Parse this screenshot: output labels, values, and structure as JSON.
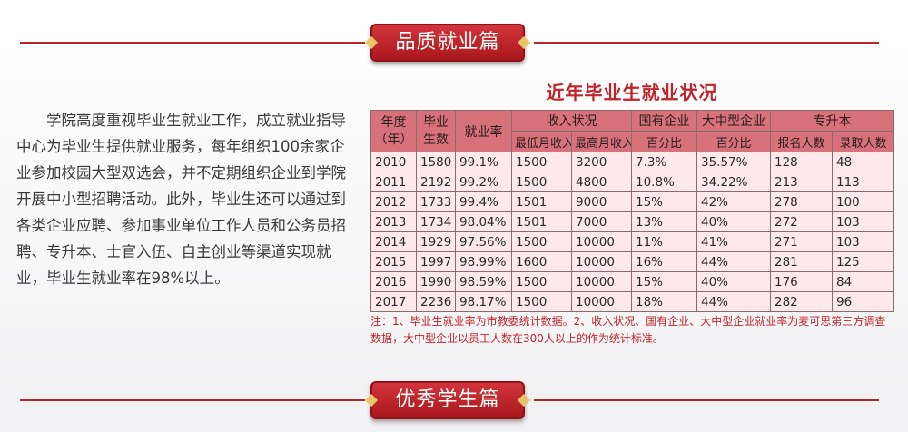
{
  "sections": {
    "top_title": "品质就业篇",
    "bottom_title": "优秀学生篇"
  },
  "intro": {
    "text": "学院高度重视毕业生就业工作，成立就业指导中心为毕业生提供就业服务，每年组织100余家企业参加校园大型双选会，并不定期组织企业到学院开展中小型招聘活动。此外，毕业生还可以通过到各类企业应聘、参加事业单位工作人员和公务员招聘、专升本、士官入伍、自主创业等渠道实现就业，毕业生就业率在98%以上。"
  },
  "table": {
    "title": "近年毕业生就业状况",
    "headers": {
      "year": "年度（年）",
      "graduates": "毕业生数",
      "rate": "就业率",
      "income": "收入状况",
      "income_min": "最低月收入",
      "income_max": "最高月收入",
      "soe": "国有企业",
      "soe_sub": "百分比",
      "large": "大中型企业",
      "large_sub": "百分比",
      "upgrade": "专升本",
      "applicants": "报名人数",
      "admitted": "录取人数"
    },
    "rows": [
      [
        "2010",
        "1580",
        "99.1%",
        "1500",
        "3200",
        "7.3%",
        "35.57%",
        "128",
        "48"
      ],
      [
        "2011",
        "2192",
        "99.2%",
        "1500",
        "4800",
        "10.8%",
        "34.22%",
        "213",
        "113"
      ],
      [
        "2012",
        "1733",
        "99.4%",
        "1501",
        "9000",
        "15%",
        "42%",
        "278",
        "100"
      ],
      [
        "2013",
        "1734",
        "98.04%",
        "1501",
        "7000",
        "13%",
        "40%",
        "272",
        "103"
      ],
      [
        "2014",
        "1929",
        "97.56%",
        "1500",
        "10000",
        "11%",
        "41%",
        "271",
        "103"
      ],
      [
        "2015",
        "1997",
        "98.99%",
        "1600",
        "10000",
        "16%",
        "44%",
        "281",
        "125"
      ],
      [
        "2016",
        "1990",
        "98.59%",
        "1500",
        "10000",
        "15%",
        "40%",
        "176",
        "84"
      ],
      [
        "2017",
        "2236",
        "98.17%",
        "1500",
        "10000",
        "18%",
        "44%",
        "282",
        "96"
      ]
    ],
    "note": "注：1、毕业生就业率为市教委统计数据。2、收入状况、国有企业、大中型企业就业率为麦可思第三方调查数据，大中型企业以员工人数在300人以上的作为统计标准。"
  },
  "colors": {
    "accent": "#c0242a",
    "header_bg": "#d7727b",
    "cell_bg": "#fde8ec"
  }
}
